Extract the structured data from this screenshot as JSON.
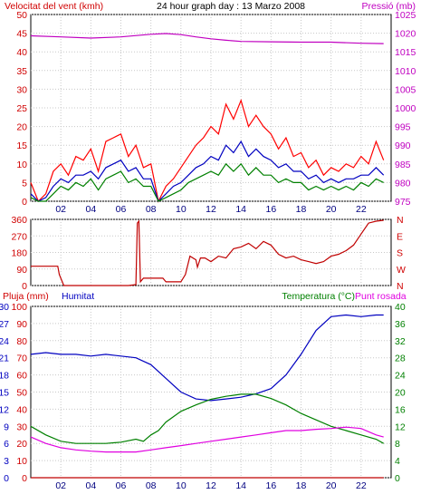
{
  "chart_data": [
    {
      "type": "line",
      "title": "24 hour graph day : 13 Marzo 2008",
      "left_axis_label": "Velocitat del vent (kmh)",
      "right_axis_label": "Pressió (mb)",
      "left_axis_ticks": [
        0,
        5,
        10,
        15,
        20,
        25,
        30,
        35,
        40,
        45,
        50
      ],
      "left_ylim": [
        0,
        50
      ],
      "right_axis_ticks": [
        975,
        980,
        985,
        990,
        995,
        1000,
        1005,
        1010,
        1015,
        1020,
        1025
      ],
      "right_ylim": [
        975,
        1025
      ],
      "x_ticks": [
        "02",
        "04",
        "06",
        "08",
        "10",
        "12",
        "14",
        "16",
        "18",
        "20",
        "22"
      ],
      "x_range_hours": [
        0,
        24
      ],
      "grid": true,
      "series": [
        {
          "axis": "right",
          "color": "#c000c0",
          "x": [
            0,
            2,
            4,
            6,
            8,
            9,
            10,
            11,
            12,
            13,
            14,
            16,
            18,
            20,
            22,
            23.5
          ],
          "values": [
            1019.3,
            1019,
            1018.7,
            1019,
            1019.7,
            1019.9,
            1019.6,
            1019,
            1018.5,
            1018.1,
            1017.8,
            1017.7,
            1017.6,
            1017.6,
            1017.3,
            1017.2
          ]
        },
        {
          "color": "#ff0000",
          "x": [
            0,
            0.5,
            1,
            1.5,
            2,
            2.5,
            3,
            3.5,
            4,
            4.5,
            5,
            5.5,
            6,
            6.5,
            7,
            7.5,
            8,
            8.5,
            9,
            9.5,
            10,
            10.5,
            11,
            11.5,
            12,
            12.5,
            13,
            13.5,
            14,
            14.5,
            15,
            15.5,
            16,
            16.5,
            17,
            17.5,
            18,
            18.5,
            19,
            19.5,
            20,
            20.5,
            21,
            21.5,
            22,
            22.5,
            23,
            23.5
          ],
          "values": [
            5,
            0,
            2,
            8,
            10,
            7,
            12,
            11,
            14,
            8,
            16,
            17,
            18,
            12,
            15,
            9,
            10,
            0,
            4,
            6,
            9,
            12,
            15,
            17,
            20,
            18,
            26,
            22,
            27,
            20,
            23,
            20,
            18,
            14,
            17,
            12,
            13,
            9,
            11,
            7,
            9,
            8,
            10,
            9,
            12,
            10,
            16,
            11
          ]
        },
        {
          "color": "#0000c0",
          "x": [
            0,
            0.5,
            1,
            1.5,
            2,
            2.5,
            3,
            3.5,
            4,
            4.5,
            5,
            5.5,
            6,
            6.5,
            7,
            7.5,
            8,
            8.5,
            9,
            9.5,
            10,
            10.5,
            11,
            11.5,
            12,
            12.5,
            13,
            13.5,
            14,
            14.5,
            15,
            15.5,
            16,
            16.5,
            17,
            17.5,
            18,
            18.5,
            19,
            19.5,
            20,
            20.5,
            21,
            21.5,
            22,
            22.5,
            23,
            23.5
          ],
          "values": [
            2,
            0,
            1,
            4,
            6,
            5,
            7,
            7,
            8,
            6,
            9,
            10,
            11,
            8,
            9,
            6,
            6,
            0,
            2,
            4,
            5,
            7,
            9,
            10,
            12,
            11,
            15,
            13,
            16,
            12,
            14,
            12,
            11,
            9,
            10,
            8,
            8,
            6,
            7,
            5,
            6,
            5,
            6,
            6,
            7,
            7,
            9,
            7
          ]
        },
        {
          "color": "#008000",
          "x": [
            0,
            0.5,
            1,
            1.5,
            2,
            2.5,
            3,
            3.5,
            4,
            4.5,
            5,
            5.5,
            6,
            6.5,
            7,
            7.5,
            8,
            8.5,
            9,
            9.5,
            10,
            10.5,
            11,
            11.5,
            12,
            12.5,
            13,
            13.5,
            14,
            14.5,
            15,
            15.5,
            16,
            16.5,
            17,
            17.5,
            18,
            18.5,
            19,
            19.5,
            20,
            20.5,
            21,
            21.5,
            22,
            22.5,
            23,
            23.5
          ],
          "values": [
            1,
            0,
            0,
            2,
            4,
            3,
            5,
            4,
            6,
            3,
            6,
            7,
            8,
            5,
            6,
            4,
            4,
            0,
            1,
            2,
            3,
            5,
            6,
            7,
            8,
            7,
            10,
            8,
            10,
            7,
            9,
            7,
            7,
            5,
            6,
            5,
            5,
            3,
            4,
            3,
            4,
            3,
            4,
            3,
            5,
            4,
            6,
            5
          ]
        }
      ]
    },
    {
      "type": "line",
      "left_axis_ticks": [
        0,
        90,
        180,
        270,
        360
      ],
      "left_ylim": [
        0,
        360
      ],
      "right_axis_labels": [
        "N",
        "W",
        "S",
        "E",
        "N"
      ],
      "x_ticks": [],
      "grid": true,
      "series": [
        {
          "color": "#c00000",
          "x": [
            0,
            1.8,
            1.9,
            2.2,
            3,
            5,
            6.5,
            7,
            7.1,
            7.2,
            7.3,
            7.5,
            8,
            8.2,
            8.5,
            8.8,
            9,
            10,
            10.3,
            10.6,
            11,
            11.1,
            11.3,
            11.6,
            12,
            12.5,
            13,
            13.5,
            14,
            14.5,
            15,
            15.5,
            16,
            16.5,
            17,
            17.5,
            18,
            18.5,
            19,
            19.5,
            20,
            20.5,
            21,
            21.5,
            22,
            22.5,
            23,
            23.5
          ],
          "values": [
            105,
            105,
            60,
            0,
            0,
            0,
            0,
            5,
            340,
            350,
            20,
            40,
            40,
            40,
            40,
            40,
            20,
            20,
            60,
            160,
            140,
            100,
            150,
            150,
            130,
            160,
            150,
            200,
            210,
            230,
            200,
            240,
            220,
            170,
            150,
            160,
            140,
            130,
            120,
            130,
            160,
            170,
            190,
            220,
            280,
            340,
            350,
            355
          ]
        }
      ]
    },
    {
      "type": "line",
      "left_axis_label": "Pluja (mm)",
      "series_label": "Humitat",
      "right_axis_label_1": "Temperatura (°C)",
      "right_axis_label_2": "Punt rosada",
      "left_axis_ticks": [
        0,
        10,
        20,
        30,
        40,
        50,
        60,
        70,
        80,
        90,
        100
      ],
      "left_axis_ticks_2": [
        0,
        3,
        6,
        9,
        12,
        15,
        18,
        21,
        24,
        27,
        30
      ],
      "left_ylim": [
        0,
        100
      ],
      "right_axis_ticks": [
        0,
        4,
        8,
        12,
        16,
        20,
        24,
        28,
        32,
        36,
        40
      ],
      "right_ylim": [
        0,
        40
      ],
      "x_ticks": [
        "02",
        "04",
        "06",
        "08",
        "10",
        "12",
        "14",
        "16",
        "18",
        "20",
        "22"
      ],
      "grid": true,
      "series": [
        {
          "color": "#0000c0",
          "x": [
            0,
            1,
            2,
            3,
            4,
            5,
            6,
            7,
            8,
            9,
            10,
            11,
            12,
            13,
            14,
            15,
            16,
            17,
            18,
            19,
            20,
            21,
            22,
            23,
            23.5
          ],
          "values": [
            72,
            73,
            72,
            72,
            71,
            72,
            71,
            70,
            66,
            58,
            50,
            46,
            45,
            46,
            47,
            49,
            52,
            60,
            72,
            86,
            94,
            95,
            94,
            95,
            95
          ]
        },
        {
          "axis": "right",
          "color": "#008000",
          "x": [
            0,
            1,
            2,
            3,
            4,
            5,
            6,
            7,
            7.5,
            8,
            8.5,
            9,
            10,
            11,
            12,
            13,
            14,
            15,
            16,
            17,
            18,
            19,
            20,
            21,
            22,
            23,
            23.5
          ],
          "values": [
            12,
            10,
            8.5,
            8,
            8,
            8,
            8.3,
            9,
            8.5,
            10,
            11,
            13,
            15.5,
            17,
            18.3,
            19,
            19.5,
            19.5,
            18.5,
            17,
            15,
            13.5,
            12,
            11,
            10,
            9,
            8
          ]
        },
        {
          "axis": "right",
          "color": "#e000e0",
          "x": [
            0,
            1,
            2,
            3,
            4,
            5,
            6,
            7,
            8,
            9,
            10,
            11,
            12,
            13,
            14,
            15,
            16,
            17,
            18,
            19,
            20,
            21,
            22,
            23,
            23.5
          ],
          "values": [
            9.5,
            8,
            7,
            6.5,
            6.2,
            6,
            6,
            6,
            6.5,
            7,
            7.5,
            8,
            8.5,
            9,
            9.5,
            10,
            10.5,
            11,
            11,
            11.3,
            11.5,
            11.8,
            11.5,
            10,
            9.5
          ]
        },
        {
          "color": "#c00000",
          "x": [
            0,
            23.5
          ],
          "values": [
            0,
            0
          ]
        }
      ]
    }
  ]
}
